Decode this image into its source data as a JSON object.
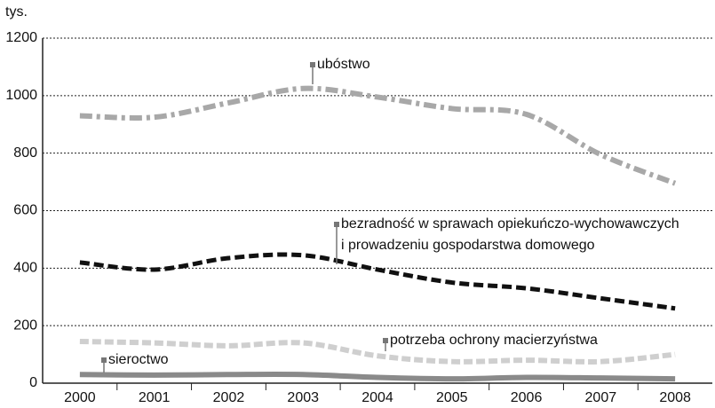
{
  "chart_data": {
    "type": "line",
    "y_unit": "tys.",
    "categories": [
      "2000",
      "2001",
      "2002",
      "2003",
      "2004",
      "2005",
      "2006",
      "2007",
      "2008"
    ],
    "ylim": [
      0,
      1200
    ],
    "yticks": [
      0,
      200,
      400,
      600,
      800,
      1000,
      1200
    ],
    "grid": true,
    "series": [
      {
        "label": [
          "ubóstwo"
        ],
        "color": "#a8a8a8",
        "values": [
          930,
          925,
          975,
          1025,
          995,
          955,
          935,
          795,
          695
        ]
      },
      {
        "label": [
          "bezradność w sprawach opiekuńczo-wychowawczych",
          "i prowadzeniu gospodarstwa domowego"
        ],
        "color": "#111111",
        "values": [
          420,
          395,
          435,
          445,
          395,
          350,
          330,
          295,
          260
        ]
      },
      {
        "label": [
          "potrzeba ochrony macierzyństwa"
        ],
        "color": "#cfcfcf",
        "values": [
          145,
          140,
          130,
          140,
          95,
          75,
          80,
          75,
          100
        ]
      },
      {
        "label": [
          "sieroctwo"
        ],
        "color": "#8a8a8a",
        "values": [
          30,
          28,
          30,
          30,
          20,
          15,
          20,
          18,
          15
        ]
      }
    ]
  }
}
